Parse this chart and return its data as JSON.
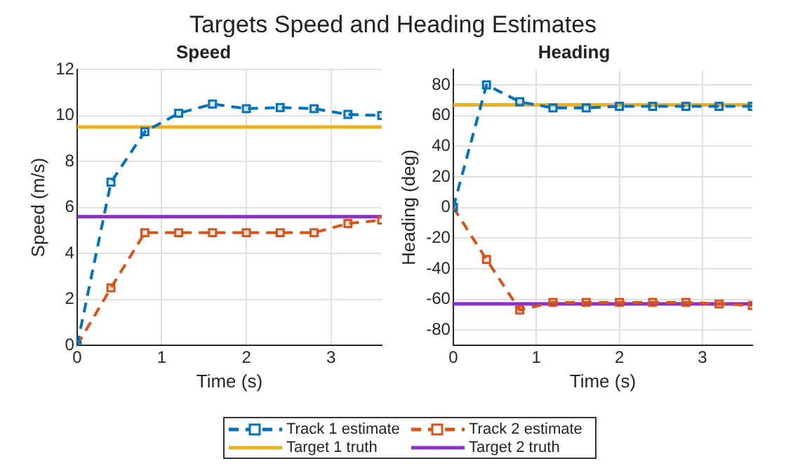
{
  "chart_data": [
    {
      "type": "line",
      "title": "Targets Speed and Heading Estimates",
      "subtitle": "Speed",
      "xlabel": "Time (s)",
      "ylabel": "Speed (m/s)",
      "x": [
        0,
        0.4,
        0.8,
        1.2,
        1.6,
        2.0,
        2.4,
        2.8,
        3.2,
        3.6
      ],
      "xlim": [
        0,
        3.6
      ],
      "xticks": [
        0,
        1,
        2,
        3
      ],
      "ylim": [
        0,
        12
      ],
      "yticks": [
        0,
        2,
        4,
        6,
        8,
        10,
        12
      ],
      "grid": true,
      "legend": "bottom",
      "series": [
        {
          "name": "Track 1 estimate",
          "color": "#0072bd",
          "marker": "square",
          "line_style": "dashed",
          "values": [
            0,
            7.1,
            9.3,
            10.1,
            10.5,
            10.3,
            10.35,
            10.3,
            10.05,
            10.0
          ]
        },
        {
          "name": "Track 2 estimate",
          "color": "#d95319",
          "marker": "square",
          "line_style": "dashed",
          "values": [
            0,
            2.5,
            4.9,
            4.9,
            4.9,
            4.9,
            4.9,
            4.9,
            5.3,
            5.45
          ]
        },
        {
          "name": "Target 1 truth",
          "color": "#edb120",
          "marker": "none",
          "line_style": "solid",
          "values": [
            9.5,
            9.5,
            9.5,
            9.5,
            9.5,
            9.5,
            9.5,
            9.5,
            9.5,
            9.5
          ]
        },
        {
          "name": "Target 2 truth",
          "color": "#8c2fd0",
          "marker": "none",
          "line_style": "solid",
          "values": [
            5.6,
            5.6,
            5.6,
            5.6,
            5.6,
            5.6,
            5.6,
            5.6,
            5.6,
            5.6
          ]
        }
      ]
    },
    {
      "type": "line",
      "title": "Heading",
      "xlabel": "Time (s)",
      "ylabel": "Heading (deg)",
      "x": [
        0,
        0.4,
        0.8,
        1.2,
        1.6,
        2.0,
        2.4,
        2.8,
        3.2,
        3.6
      ],
      "xlim": [
        0,
        3.6
      ],
      "xticks": [
        0,
        1,
        2,
        3
      ],
      "ylim": [
        -90,
        90
      ],
      "yticks": [
        -80,
        -60,
        -40,
        -20,
        0,
        20,
        40,
        60,
        80
      ],
      "grid": true,
      "series": [
        {
          "color": "#0072bd",
          "marker": "square",
          "line_style": "dashed",
          "values": [
            0,
            80,
            69,
            65,
            65,
            66,
            66,
            66,
            66,
            66
          ]
        },
        {
          "color": "#d95319",
          "marker": "square",
          "line_style": "dashed",
          "values": [
            0,
            -34,
            -67,
            -62,
            -62,
            -62,
            -62,
            -62,
            -63,
            -64
          ]
        },
        {
          "color": "#edb120",
          "marker": "none",
          "line_style": "solid",
          "values": [
            67,
            67,
            67,
            67,
            67,
            67,
            67,
            67,
            67,
            67
          ]
        },
        {
          "color": "#8c2fd0",
          "marker": "none",
          "line_style": "solid",
          "values": [
            -63,
            -63,
            -63,
            -63,
            -63,
            -63,
            -63,
            -63,
            -63,
            -63
          ]
        }
      ]
    }
  ]
}
